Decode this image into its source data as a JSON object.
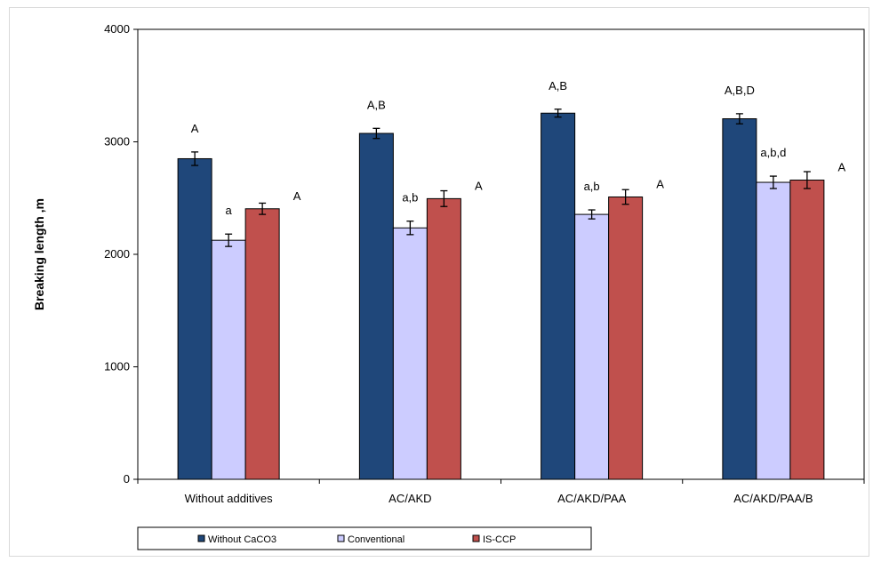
{
  "chart_data": {
    "type": "bar",
    "ylabel": "Breaking length ,m",
    "ylim": [
      0,
      4000
    ],
    "yticks": [
      0,
      1000,
      2000,
      3000,
      4000
    ],
    "categories": [
      "Without additives",
      "AC/AKD",
      "AC/AKD/PAA",
      "AC/AKD/PAA/B"
    ],
    "series": [
      {
        "name": "Without CaCO3",
        "color": "#1f477a",
        "values": [
          2850,
          3075,
          3255,
          3205
        ],
        "errors": [
          60,
          45,
          35,
          45
        ],
        "annotations": [
          "A",
          "A,B",
          "A,B",
          "A,B,D"
        ]
      },
      {
        "name": "Conventional",
        "color": "#ccccff",
        "values": [
          2125,
          2235,
          2355,
          2640
        ],
        "errors": [
          55,
          60,
          40,
          55
        ],
        "annotations": [
          "a",
          "a,b",
          "a,b",
          "a,b,d"
        ]
      },
      {
        "name": "IS-CCP",
        "color": "#c0504d",
        "values": [
          2405,
          2495,
          2510,
          2660
        ],
        "errors": [
          50,
          70,
          65,
          75
        ],
        "annotations": [
          "A",
          "A",
          "A",
          "A"
        ]
      }
    ],
    "grid": false,
    "legend_position": "bottom"
  }
}
